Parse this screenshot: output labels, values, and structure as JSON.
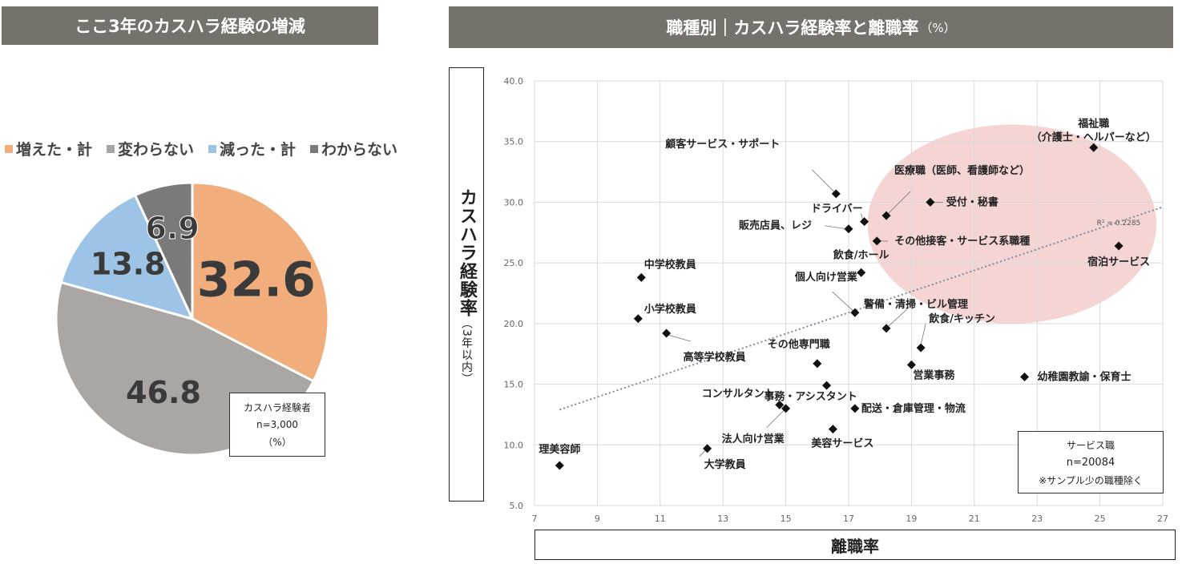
{
  "left_panel": {
    "title": "ここ3年のカスハラ経験の増減",
    "note": {
      "line1": "カスハラ経験者",
      "line2": "n=3,000",
      "line3": "（%）"
    }
  },
  "right_panel": {
    "title": "職種別｜カスハラ経験率と離職率",
    "title_unit": "（%）",
    "ylabel": "カスハラ経験率",
    "ylabel_sub": "（3年以内）",
    "xlabel": "離職率",
    "r2_label": "R² = 0.2285",
    "service_box": {
      "line1": "サービス職",
      "line2": "n=20084",
      "line3": "※サンプル少の職種除く"
    }
  },
  "chart_data": [
    {
      "type": "pie",
      "title": "ここ3年のカスハラ経験の増減",
      "categories": [
        "増えた・計",
        "変わらない",
        "減った・計",
        "わからない"
      ],
      "values": [
        32.6,
        46.8,
        13.8,
        6.9
      ],
      "labels": [
        "32.6",
        "46.8",
        "13.8",
        "6.9"
      ],
      "colors": [
        "#f2ad7d",
        "#aaa6a4",
        "#9dc3e6",
        "#7a7a7a"
      ],
      "legend_position": "top"
    },
    {
      "type": "scatter",
      "title": "職種別｜カスハラ経験率と離職率",
      "xlabel": "離職率",
      "ylabel": "カスハラ経験率（3年以内）",
      "xlim": [
        7,
        27
      ],
      "ylim": [
        5,
        40
      ],
      "xticks": [
        "7",
        "9",
        "11",
        "13",
        "15",
        "17",
        "19",
        "21",
        "23",
        "25",
        "27"
      ],
      "yticks": [
        "5.0",
        "10.0",
        "15.0",
        "20.0",
        "25.0",
        "30.0",
        "35.0",
        "40.0"
      ],
      "trendline": {
        "x": [
          7.8,
          27
        ],
        "y": [
          12.9,
          29.6
        ],
        "r2": 0.2285
      },
      "highlight_ellipse": {
        "cx": 22.2,
        "cy": 28.2,
        "rx": 4.6,
        "ry": 8.2
      },
      "points": [
        {
          "label": "福祉職",
          "label2": "（介護士・ヘルパーなど）",
          "x": 24.8,
          "y": 34.5
        },
        {
          "label": "顧客サービス・サポート",
          "x": 16.6,
          "y": 30.7
        },
        {
          "label": "医療職（医師、看護師など）",
          "x": 18.2,
          "y": 28.9
        },
        {
          "label": "受付・秘書",
          "x": 19.6,
          "y": 30.0
        },
        {
          "label": "ドライバー",
          "x": 17.5,
          "y": 28.4
        },
        {
          "label": "販売店員、レジ",
          "x": 17.0,
          "y": 27.8
        },
        {
          "label": "その他接客・サービス系職種",
          "x": 17.9,
          "y": 26.8
        },
        {
          "label": "宿泊サービス",
          "x": 25.6,
          "y": 26.4
        },
        {
          "label": "飲食/ホール",
          "x": 17.4,
          "y": 24.2
        },
        {
          "label": "中学校教員",
          "x": 10.4,
          "y": 23.8
        },
        {
          "label": "個人向け営業",
          "x": 17.2,
          "y": 20.9
        },
        {
          "label": "警備・清掃・ビル管理",
          "x": 18.2,
          "y": 19.6
        },
        {
          "label": "小学校教員",
          "x": 10.3,
          "y": 20.4
        },
        {
          "label": "高等学校教員",
          "x": 11.2,
          "y": 19.2
        },
        {
          "label": "飲食/キッチン",
          "x": 19.3,
          "y": 18.0
        },
        {
          "label": "その他専門職",
          "x": 16.0,
          "y": 16.7
        },
        {
          "label": "営業事務",
          "x": 19.0,
          "y": 16.6
        },
        {
          "label": "幼稚園教諭・保育士",
          "x": 22.6,
          "y": 15.6
        },
        {
          "label": "事務・アシスタント",
          "x": 16.3,
          "y": 14.9
        },
        {
          "label": "コンサルタント",
          "x": 14.8,
          "y": 13.3
        },
        {
          "label": "法人向け営業",
          "x": 15.0,
          "y": 13.0
        },
        {
          "label": "配送・倉庫管理・物流",
          "x": 17.2,
          "y": 13.0
        },
        {
          "label": "美容サービス",
          "x": 16.5,
          "y": 11.3
        },
        {
          "label": "大学教員",
          "x": 12.5,
          "y": 9.7
        },
        {
          "label": "理美容師",
          "x": 7.8,
          "y": 8.3
        }
      ]
    }
  ]
}
